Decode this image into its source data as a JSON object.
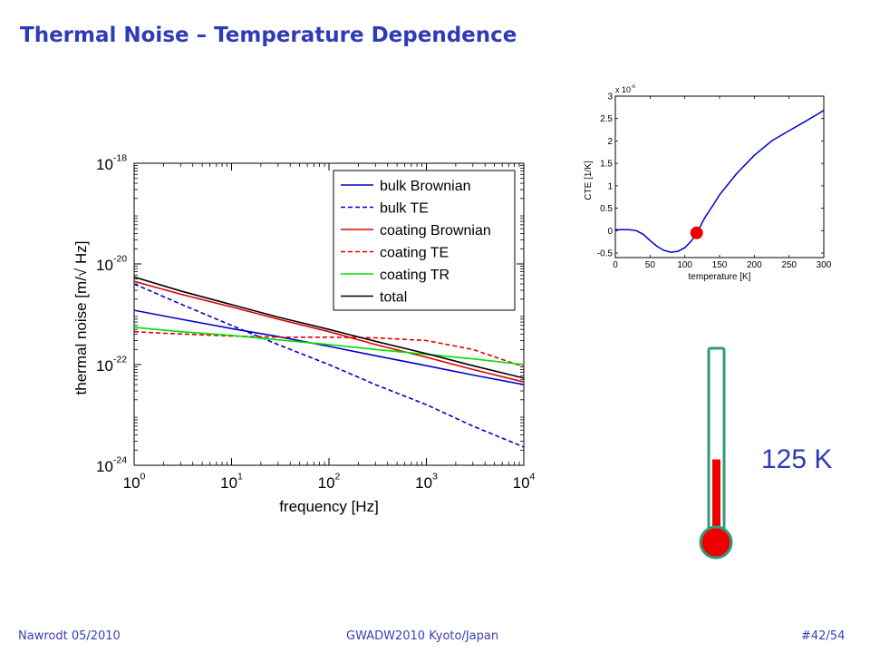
{
  "slide": {
    "title": "Thermal Noise – Temperature Dependence",
    "footer_left": "Nawrodt 05/2010",
    "footer_center": "GWADW2010 Kyoto/Japan",
    "footer_right": "#42/54",
    "temperature_label": "125 K",
    "thermometer_fill_fraction": 0.43
  },
  "chart_data": [
    {
      "type": "line",
      "xscale": "log",
      "yscale": "log",
      "xlabel": "frequency [Hz]",
      "ylabel": "thermal noise [m/√ Hz]",
      "xlim": [
        1,
        10000
      ],
      "ylim": [
        1e-24,
        1e-18
      ],
      "x_ticks": [
        1,
        10,
        100,
        1000,
        10000
      ],
      "x_tick_labels": [
        {
          "base": "10",
          "exp": "0"
        },
        {
          "base": "10",
          "exp": "1"
        },
        {
          "base": "10",
          "exp": "2"
        },
        {
          "base": "10",
          "exp": "3"
        },
        {
          "base": "10",
          "exp": "4"
        }
      ],
      "y_ticks": [
        1e-24,
        1e-22,
        1e-20,
        1e-18
      ],
      "y_tick_labels": [
        {
          "base": "10",
          "exp": "-24"
        },
        {
          "base": "10",
          "exp": "-22"
        },
        {
          "base": "10",
          "exp": "-20"
        },
        {
          "base": "10",
          "exp": "-18"
        }
      ],
      "legend_position": "top-right",
      "series": [
        {
          "name": "bulk Brownian",
          "color": "#0000cc",
          "dash": false,
          "x": [
            1,
            3,
            10,
            30,
            100,
            300,
            1000,
            3000,
            10000
          ],
          "y": [
            1.2e-21,
            8e-22,
            5.2e-22,
            3.6e-22,
            2.3e-22,
            1.5e-22,
            9.5e-23,
            6.2e-23,
            4e-23
          ]
        },
        {
          "name": "bulk TE",
          "color": "#0000cc",
          "dash": true,
          "x": [
            1,
            3,
            10,
            30,
            100,
            300,
            1000,
            3000,
            10000
          ],
          "y": [
            4e-21,
            1.6e-21,
            6e-22,
            2.5e-22,
            1e-22,
            4e-23,
            1.6e-23,
            6e-24,
            2.3e-24
          ]
        },
        {
          "name": "coating Brownian",
          "color": "#dd0000",
          "dash": false,
          "x": [
            1,
            3,
            10,
            30,
            100,
            300,
            1000,
            3000,
            10000
          ],
          "y": [
            4.5e-21,
            2.5e-21,
            1.4e-21,
            8e-22,
            4.5e-22,
            2.5e-22,
            1.4e-22,
            8e-23,
            4.5e-23
          ]
        },
        {
          "name": "coating TE",
          "color": "#dd0000",
          "dash": true,
          "x": [
            1,
            2,
            5,
            10,
            30,
            100,
            300,
            1000,
            3000,
            10000
          ],
          "y": [
            4.5e-22,
            4.2e-22,
            3.9e-22,
            3.7e-22,
            3.5e-22,
            3.5e-22,
            3.4e-22,
            3e-22,
            2e-22,
            9e-23
          ]
        },
        {
          "name": "coating TR",
          "color": "#00dd00",
          "dash": false,
          "x": [
            1,
            3,
            10,
            30,
            100,
            300,
            1000,
            3000,
            10000
          ],
          "y": [
            5.5e-22,
            4.5e-22,
            3.8e-22,
            3.1e-22,
            2.5e-22,
            2e-22,
            1.6e-22,
            1.3e-22,
            1e-22
          ]
        },
        {
          "name": "total",
          "color": "#000000",
          "dash": false,
          "x": [
            1,
            3,
            10,
            30,
            100,
            300,
            1000,
            3000,
            10000
          ],
          "y": [
            5.5e-21,
            2.9e-21,
            1.55e-21,
            8.8e-22,
            5e-22,
            2.9e-22,
            1.65e-22,
            9.5e-23,
            5.4e-23
          ]
        }
      ]
    },
    {
      "type": "line",
      "xlabel": "temperature [K]",
      "ylabel": "CTE [1/K]",
      "y_multiplier_label": {
        "base": "x 10",
        "exp": "-6"
      },
      "xlim": [
        0,
        300
      ],
      "ylim": [
        -0.6,
        3
      ],
      "x_ticks": [
        0,
        50,
        100,
        150,
        200,
        250,
        300
      ],
      "x_tick_labels": [
        "0",
        "50",
        "100",
        "150",
        "200",
        "250",
        "300"
      ],
      "y_ticks": [
        -0.5,
        0,
        0.5,
        1,
        1.5,
        2,
        2.5,
        3
      ],
      "y_tick_labels": [
        "-0.5",
        "0",
        "0.5",
        "1",
        "1.5",
        "2",
        "2.5",
        "3"
      ],
      "series": [
        {
          "color": "#0000cc",
          "x": [
            0,
            20,
            30,
            40,
            50,
            60,
            70,
            80,
            90,
            100,
            110,
            120,
            125,
            130,
            140,
            150,
            175,
            200,
            225,
            250,
            275,
            300
          ],
          "y": [
            0.02,
            0.02,
            0.0,
            -0.08,
            -0.22,
            -0.35,
            -0.44,
            -0.48,
            -0.46,
            -0.38,
            -0.22,
            0.02,
            0.18,
            0.32,
            0.55,
            0.8,
            1.28,
            1.68,
            2.0,
            2.23,
            2.45,
            2.68
          ]
        }
      ],
      "marker": {
        "x": 117,
        "y": -0.05,
        "color": "#ee0000"
      }
    }
  ]
}
